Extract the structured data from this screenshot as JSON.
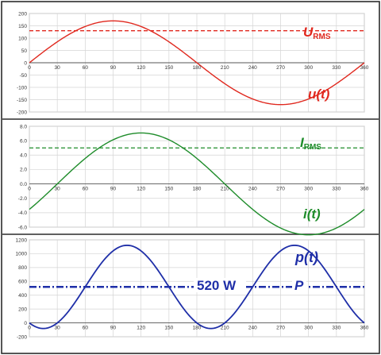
{
  "chart_data": [
    {
      "type": "line",
      "xlim": [
        0,
        360
      ],
      "ylim": [
        -200,
        200
      ],
      "x_ticks": [
        "0",
        "30",
        "60",
        "90",
        "120",
        "150",
        "180",
        "210",
        "240",
        "270",
        "300",
        "330",
        "360"
      ],
      "y_ticks": [
        "200",
        "150",
        "100",
        "50",
        "0",
        "-50",
        "-100",
        "-150",
        "-200"
      ],
      "grid": true,
      "series": [
        {
          "kind": "sine",
          "amplitude": 170,
          "phase_deg": 0,
          "offset": 0,
          "color": "#e0281e",
          "style": "solid"
        },
        {
          "kind": "constant",
          "value": 130,
          "color": "#e0281e",
          "style": "dashed"
        }
      ],
      "labels": {
        "rms_main": "U",
        "rms_sub": "RMS",
        "curve": "u(t)"
      },
      "label_color": "#e0281e"
    },
    {
      "type": "line",
      "xlim": [
        0,
        360
      ],
      "ylim": [
        -6,
        8
      ],
      "x_ticks": [
        "0",
        "30",
        "60",
        "90",
        "120",
        "150",
        "180",
        "210",
        "240",
        "270",
        "300",
        "330",
        "360"
      ],
      "y_ticks": [
        "8.0",
        "6.0",
        "4.0",
        "2.0",
        "0.0",
        "-2.0",
        "-4.0",
        "-6.0"
      ],
      "grid": true,
      "series": [
        {
          "kind": "sine",
          "amplitude": 7.07,
          "phase_deg": -30,
          "offset": 0,
          "color": "#1e8c2a",
          "style": "solid"
        },
        {
          "kind": "constant",
          "value": 5.0,
          "color": "#1e8c2a",
          "style": "dashed"
        }
      ],
      "labels": {
        "rms_main": "I",
        "rms_sub": "RMS",
        "curve": "i(t)"
      },
      "label_color": "#1e8c2a"
    },
    {
      "type": "line",
      "xlim": [
        0,
        360
      ],
      "ylim": [
        -200,
        1200
      ],
      "x_ticks": [
        "0",
        "30",
        "60",
        "90",
        "120",
        "150",
        "180",
        "210",
        "240",
        "270",
        "300",
        "330",
        "360"
      ],
      "y_ticks": [
        "1200",
        "1000",
        "800",
        "600",
        "400",
        "200",
        "0",
        "-200"
      ],
      "grid": true,
      "series": [
        {
          "kind": "power",
          "mean": 520,
          "amplitude": 601,
          "phase_deg": -30,
          "color": "#1f2fa8",
          "style": "solid"
        },
        {
          "kind": "constant",
          "value": 520,
          "color": "#1f2fa8",
          "style": "dashdot"
        }
      ],
      "labels": {
        "curve": "p(t)",
        "value": "520 W",
        "avg": "P"
      },
      "label_color": "#1f2fa8"
    }
  ]
}
